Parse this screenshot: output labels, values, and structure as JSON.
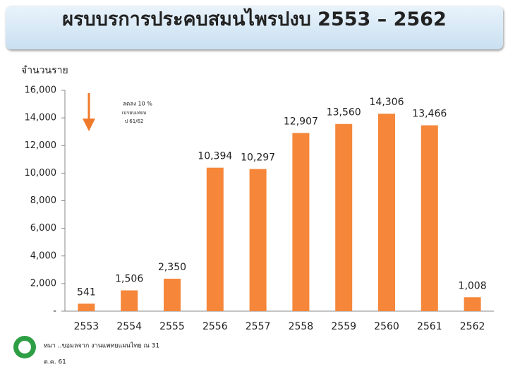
{
  "chart_data": {
    "type": "bar",
    "title": "ผรบบรการประคบสมนไพรปงบ 2553 – 2562",
    "y_label": "จำนวนราย",
    "categories": [
      "2553",
      "2554",
      "2555",
      "2556",
      "2557",
      "2558",
      "2559",
      "2560",
      "2561",
      "2562"
    ],
    "values": [
      541,
      1506,
      2350,
      10394,
      10297,
      12907,
      13560,
      14306,
      13466,
      1008
    ],
    "value_labels": [
      "541",
      "1,506",
      "2,350",
      "10,394",
      "10,297",
      "12,907",
      "13,560",
      "14,306",
      "13,466",
      "1,008"
    ],
    "color": "#f5863a",
    "ylim": [
      0,
      16000
    ],
    "yticks": [
      {
        "value": 0,
        "label": "-"
      },
      {
        "value": 2000,
        "label": "2,000"
      },
      {
        "value": 4000,
        "label": "4,000"
      },
      {
        "value": 6000,
        "label": "6,000"
      },
      {
        "value": 8000,
        "label": "8,000"
      },
      {
        "value": 10000,
        "label": "10,000"
      },
      {
        "value": 12000,
        "label": "12,000"
      },
      {
        "value": 14000,
        "label": "14,000"
      },
      {
        "value": 16000,
        "label": "16,000"
      }
    ],
    "annotation": [
      "ลดลง 10 %",
      "เปรยบเทยบ",
      "ป 61/62"
    ],
    "source": [
      "ทมา ..ขอมลจาก งานแพทยแผนไทย ณ 31",
      "ต.ค. 61"
    ]
  }
}
